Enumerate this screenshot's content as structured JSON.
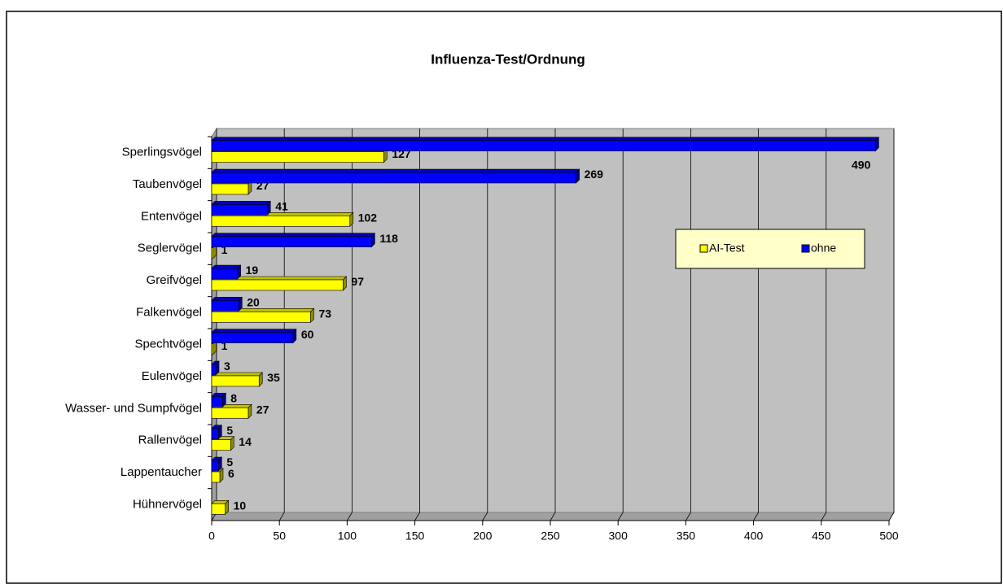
{
  "chart_data": {
    "type": "bar",
    "orientation": "horizontal",
    "title": "Influenza-Test/Ordnung",
    "categories": [
      "Sperlingsvögel",
      "Taubenvögel",
      "Entenvögel",
      "Seglervögel",
      "Greifvögel",
      "Falkenvögel",
      "Spechtvögel",
      "Eulenvögel",
      "Wasser- und Sumpfvögel",
      "Rallenvögel",
      "Lappentaucher",
      "Hühnervögel"
    ],
    "series": [
      {
        "name": "AI-Test",
        "color": "#ffff00",
        "values": [
          127,
          27,
          102,
          1,
          97,
          73,
          1,
          35,
          27,
          14,
          6,
          10
        ]
      },
      {
        "name": "ohne",
        "color": "#0000ff",
        "values": [
          490,
          269,
          41,
          118,
          19,
          20,
          60,
          3,
          8,
          5,
          5,
          null
        ]
      }
    ],
    "xlim": [
      0,
      500
    ],
    "xticks": [
      0,
      50,
      100,
      150,
      200,
      250,
      300,
      350,
      400,
      450,
      500
    ],
    "grid": true,
    "legend": "right"
  }
}
